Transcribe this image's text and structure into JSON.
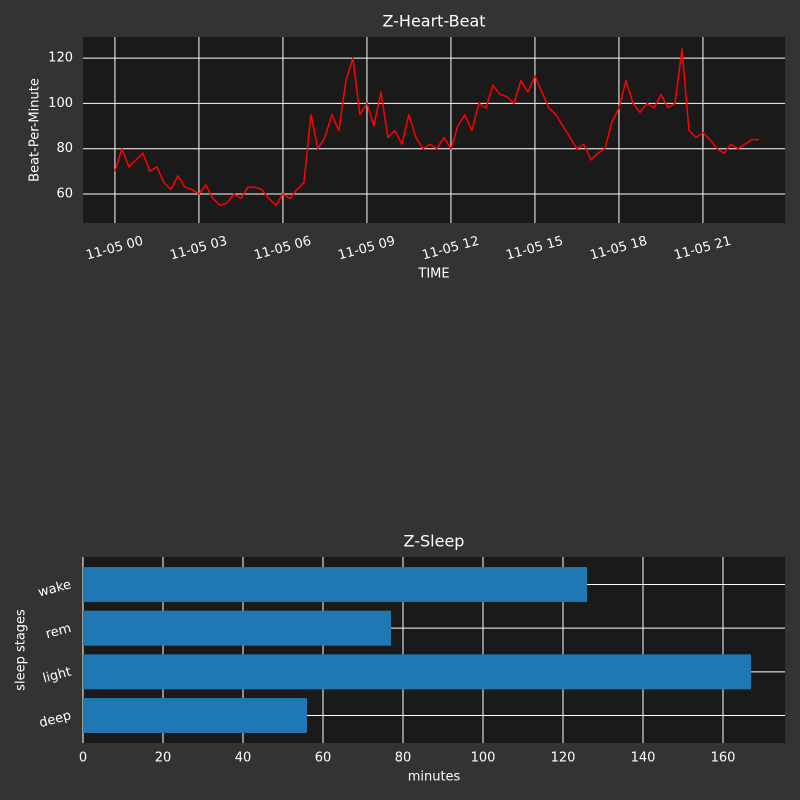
{
  "chart_data": [
    {
      "type": "line",
      "title": "Z-Heart-Beat",
      "xlabel": "TIME",
      "ylabel": "Beat-Per-Minute",
      "color": "#ff0000",
      "grid": true,
      "x": [
        0,
        0.25,
        0.5,
        0.75,
        1,
        1.25,
        1.5,
        1.75,
        2,
        2.25,
        2.5,
        2.75,
        3,
        3.25,
        3.5,
        3.75,
        4,
        4.25,
        4.5,
        4.75,
        5,
        5.25,
        5.5,
        5.75,
        6,
        6.25,
        6.5,
        6.75,
        7,
        7.25,
        7.5,
        7.75,
        8,
        8.25,
        8.5,
        8.75,
        9,
        9.25,
        9.5,
        9.75,
        10,
        10.25,
        10.5,
        10.75,
        11,
        11.25,
        11.5,
        11.75,
        12,
        12.25,
        12.5,
        12.75,
        13,
        13.25,
        13.5,
        13.75,
        14,
        14.25,
        14.5,
        14.75,
        15,
        15.25,
        15.5,
        15.75,
        16,
        16.25,
        16.5,
        16.75,
        17,
        17.25,
        17.5,
        17.75,
        18,
        18.25,
        18.5,
        18.75,
        19,
        19.25,
        19.5,
        19.75,
        20,
        20.25,
        20.5,
        20.75,
        21,
        21.25,
        21.5,
        21.75,
        22,
        22.25,
        22.5,
        22.75,
        23
      ],
      "values": [
        70,
        80,
        72,
        75,
        78,
        70,
        72,
        65,
        62,
        68,
        63,
        62,
        60,
        64,
        58,
        55,
        56,
        60,
        58,
        63,
        63,
        62,
        58,
        55,
        60,
        58,
        62,
        65,
        95,
        80,
        85,
        95,
        88,
        110,
        120,
        95,
        100,
        90,
        105,
        85,
        88,
        82,
        95,
        85,
        80,
        82,
        80,
        85,
        80,
        90,
        95,
        88,
        100,
        98,
        108,
        104,
        103,
        100,
        110,
        105,
        112,
        105,
        98,
        95,
        90,
        85,
        80,
        82,
        75,
        78,
        80,
        92,
        98,
        110,
        100,
        96,
        100,
        98,
        104,
        98,
        100,
        124,
        88,
        85,
        87,
        84,
        80,
        78,
        82,
        80,
        82,
        84,
        84
      ],
      "xlim": [
        -1.14,
        23.93
      ],
      "xticks": [
        {
          "value": 0,
          "label": "11-05 00"
        },
        {
          "value": 3,
          "label": "11-05 03"
        },
        {
          "value": 6,
          "label": "11-05 06"
        },
        {
          "value": 9,
          "label": "11-05 09"
        },
        {
          "value": 12,
          "label": "11-05 12"
        },
        {
          "value": 15,
          "label": "11-05 15"
        },
        {
          "value": 18,
          "label": "11-05 18"
        },
        {
          "value": 21,
          "label": "11-05 21"
        }
      ],
      "ylim": [
        47.2,
        129.3
      ],
      "yticks": [
        60,
        80,
        100,
        120
      ]
    },
    {
      "type": "barh",
      "title": "Z-Sleep",
      "xlabel": "minutes",
      "ylabel": "sleep stages",
      "color": "#1f77b4",
      "grid": true,
      "categories": [
        "deep",
        "light",
        "rem",
        "wake"
      ],
      "values": [
        56,
        167,
        77,
        126
      ],
      "xlim": [
        0,
        175.5
      ],
      "xticks": [
        0,
        20,
        40,
        60,
        80,
        100,
        120,
        140,
        160
      ]
    }
  ]
}
